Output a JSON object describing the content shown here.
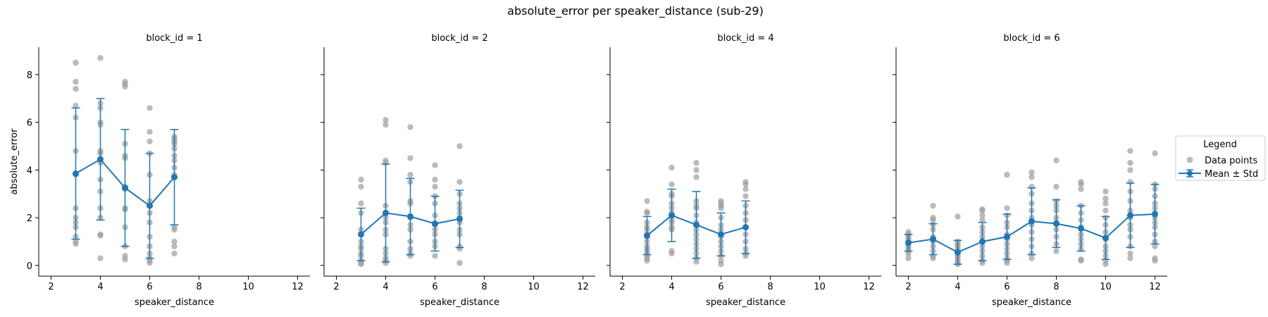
{
  "figure": {
    "title": "absolute_error per speaker_distance (sub-29)"
  },
  "legend": {
    "title": "Legend",
    "items": [
      "Data points",
      "Mean ± Std"
    ]
  },
  "colors": {
    "mean": "#1f77b4",
    "points": "#9e9e9e"
  },
  "chart_data": [
    {
      "type": "scatter",
      "title": "block_id = 1",
      "xlabel": "speaker_distance",
      "ylabel": "absolute_error",
      "xlim": [
        1.5,
        12.5
      ],
      "ylim": [
        -0.45,
        9.15
      ],
      "xticks": [
        "2",
        "4",
        "6",
        "8",
        "10",
        "12"
      ],
      "yticks": [
        "0",
        "2",
        "4",
        "6",
        "8"
      ],
      "series": [
        {
          "name": "Mean ± Std",
          "x": [
            3,
            4,
            5,
            6,
            7
          ],
          "mean": [
            3.85,
            4.45,
            3.25,
            2.5,
            3.7
          ],
          "std": [
            2.75,
            2.55,
            2.45,
            2.2,
            2.0
          ]
        }
      ],
      "points": [
        {
          "x": 3,
          "y": [
            8.5,
            7.7,
            7.4,
            6.7,
            6.2,
            4.8,
            3.8,
            2.4,
            2.0,
            1.8,
            1.6,
            1.2,
            1.0,
            0.9
          ]
        },
        {
          "x": 4,
          "y": [
            8.7,
            6.8,
            6.6,
            6.0,
            5.9,
            4.8,
            4.7,
            4.3,
            3.6,
            3.1,
            2.4,
            2.0,
            1.3,
            1.25,
            0.3
          ]
        },
        {
          "x": 5,
          "y": [
            7.7,
            7.6,
            7.5,
            5.1,
            4.6,
            4.5,
            3.3,
            3.2,
            2.4,
            2.35,
            1.6,
            0.8,
            0.4,
            0.25
          ]
        },
        {
          "x": 6,
          "y": [
            6.6,
            5.6,
            5.2,
            4.7,
            3.8,
            2.7,
            2.2,
            1.8,
            1.2,
            0.8,
            0.5,
            0.3,
            0.2,
            0.1
          ]
        },
        {
          "x": 7,
          "y": [
            5.4,
            5.3,
            5.2,
            5.1,
            4.9,
            4.6,
            4.4,
            4.1,
            3.8,
            1.6,
            1.5,
            1.0,
            0.8,
            0.5
          ]
        }
      ]
    },
    {
      "type": "scatter",
      "title": "block_id = 2",
      "xlabel": "speaker_distance",
      "ylabel": "",
      "xlim": [
        1.5,
        12.5
      ],
      "ylim": [
        -0.45,
        9.15
      ],
      "xticks": [
        "2",
        "4",
        "6",
        "8",
        "10",
        "12"
      ],
      "yticks": [],
      "series": [
        {
          "name": "Mean ± Std",
          "x": [
            3,
            4,
            5,
            6,
            7
          ],
          "mean": [
            1.3,
            2.2,
            2.05,
            1.75,
            1.95
          ],
          "std": [
            1.1,
            2.05,
            1.6,
            1.15,
            1.2
          ]
        }
      ],
      "points": [
        {
          "x": 3,
          "y": [
            3.6,
            3.3,
            2.6,
            2.2,
            1.5,
            1.3,
            1.0,
            0.8,
            0.7,
            0.5,
            0.4,
            0.2,
            0.1,
            0.05
          ]
        },
        {
          "x": 4,
          "y": [
            6.1,
            5.9,
            4.4,
            4.3,
            2.5,
            2.2,
            2.0,
            1.8,
            1.5,
            1.3,
            0.7,
            0.5,
            0.3,
            0.2,
            0.1
          ]
        },
        {
          "x": 5,
          "y": [
            5.8,
            4.5,
            3.8,
            3.5,
            2.7,
            2.6,
            2.0,
            1.7,
            1.5,
            1.0,
            0.7,
            0.5,
            0.4
          ]
        },
        {
          "x": 6,
          "y": [
            4.2,
            3.6,
            3.3,
            2.9,
            2.6,
            2.1,
            1.7,
            1.5,
            1.3,
            1.0,
            0.8,
            0.4
          ]
        },
        {
          "x": 7,
          "y": [
            5.0,
            3.5,
            3.0,
            2.6,
            2.4,
            2.2,
            2.0,
            1.8,
            1.5,
            1.3,
            0.8,
            0.7,
            0.1
          ]
        }
      ]
    },
    {
      "type": "scatter",
      "title": "block_id = 4",
      "xlabel": "speaker_distance",
      "ylabel": "",
      "xlim": [
        1.5,
        12.5
      ],
      "ylim": [
        -0.45,
        9.15
      ],
      "xticks": [
        "2",
        "4",
        "6",
        "8",
        "10",
        "12"
      ],
      "yticks": [],
      "series": [
        {
          "name": "Mean ± Std",
          "x": [
            3,
            4,
            5,
            6,
            7
          ],
          "mean": [
            1.25,
            2.1,
            1.7,
            1.3,
            1.6
          ],
          "std": [
            0.8,
            1.1,
            1.4,
            0.9,
            1.1
          ]
        }
      ],
      "points": [
        {
          "x": 3,
          "y": [
            2.7,
            2.25,
            2.2,
            1.8,
            1.6,
            1.5,
            1.3,
            1.2,
            1.0,
            0.8,
            0.7,
            0.6,
            0.5,
            0.4,
            0.3,
            0.2
          ]
        },
        {
          "x": 4,
          "y": [
            4.1,
            3.4,
            3.0,
            2.9,
            2.6,
            2.4,
            2.2,
            2.1,
            1.9,
            1.8,
            1.6,
            1.5,
            0.6,
            0.5
          ]
        },
        {
          "x": 5,
          "y": [
            4.3,
            4.0,
            3.7,
            2.7,
            2.5,
            2.4,
            2.1,
            1.8,
            1.5,
            1.3,
            1.1,
            0.9,
            0.7,
            0.5,
            0.3,
            0.15
          ]
        },
        {
          "x": 6,
          "y": [
            2.7,
            2.6,
            2.5,
            2.4,
            2.0,
            1.7,
            1.5,
            1.2,
            1.0,
            0.8,
            0.6,
            0.4,
            0.2,
            0.05
          ]
        },
        {
          "x": 7,
          "y": [
            3.5,
            3.4,
            3.2,
            2.9,
            2.5,
            2.2,
            1.9,
            1.6,
            1.3,
            1.0,
            0.7,
            0.5,
            0.4
          ]
        }
      ]
    },
    {
      "type": "scatter",
      "title": "block_id = 6",
      "xlabel": "speaker_distance",
      "ylabel": "",
      "xlim": [
        1.5,
        12.5
      ],
      "ylim": [
        -0.45,
        9.15
      ],
      "xticks": [
        "2",
        "4",
        "6",
        "8",
        "10",
        "12"
      ],
      "yticks": [],
      "series": [
        {
          "name": "Mean ± Std",
          "x": [
            2,
            3,
            4,
            5,
            6,
            7,
            8,
            9,
            10,
            11,
            12
          ],
          "mean": [
            0.95,
            1.1,
            0.55,
            1.0,
            1.2,
            1.85,
            1.75,
            1.55,
            1.15,
            2.1,
            2.15
          ],
          "std": [
            0.35,
            0.65,
            0.5,
            0.8,
            0.95,
            1.4,
            1.0,
            0.95,
            0.9,
            1.35,
            1.25
          ]
        }
      ],
      "points": [
        {
          "x": 2,
          "y": [
            1.4,
            1.3,
            1.2,
            1.1,
            1.0,
            0.9,
            0.8,
            0.7,
            0.6,
            0.5,
            0.3
          ]
        },
        {
          "x": 3,
          "y": [
            2.5,
            2.0,
            1.9,
            1.7,
            1.5,
            1.2,
            1.0,
            0.8,
            0.6,
            0.4,
            0.3
          ]
        },
        {
          "x": 4,
          "y": [
            2.05,
            1.0,
            0.9,
            0.8,
            0.7,
            0.6,
            0.5,
            0.4,
            0.3,
            0.2,
            0.1,
            0.05
          ]
        },
        {
          "x": 5,
          "y": [
            2.35,
            2.3,
            2.1,
            1.9,
            1.6,
            1.4,
            1.2,
            1.0,
            0.8,
            0.6,
            0.4,
            0.2,
            0.1
          ]
        },
        {
          "x": 6,
          "y": [
            3.8,
            2.4,
            2.1,
            1.8,
            1.6,
            1.3,
            1.1,
            0.9,
            0.7,
            0.5,
            0.3,
            0.2,
            0.1
          ]
        },
        {
          "x": 7,
          "y": [
            3.9,
            3.7,
            3.3,
            3.0,
            2.6,
            2.3,
            2.0,
            1.7,
            1.4,
            1.1,
            0.8,
            0.5,
            0.3
          ]
        },
        {
          "x": 8,
          "y": [
            4.4,
            3.3,
            2.7,
            2.5,
            2.3,
            2.0,
            1.8,
            1.5,
            1.2,
            0.9,
            0.6
          ]
        },
        {
          "x": 9,
          "y": [
            3.5,
            3.4,
            3.2,
            2.5,
            2.2,
            1.9,
            1.6,
            1.3,
            1.1,
            0.9,
            0.7,
            0.25,
            0.2
          ]
        },
        {
          "x": 10,
          "y": [
            3.1,
            2.8,
            2.6,
            2.3,
            2.0,
            1.7,
            1.4,
            1.1,
            0.8,
            0.6,
            0.4,
            0.2,
            0.05
          ]
        },
        {
          "x": 11,
          "y": [
            4.8,
            4.3,
            4.0,
            3.5,
            3.1,
            2.7,
            2.3,
            2.0,
            1.7,
            1.5,
            1.2,
            0.8,
            0.5,
            0.3
          ]
        },
        {
          "x": 12,
          "y": [
            4.7,
            3.4,
            3.2,
            2.9,
            2.6,
            2.4,
            2.2,
            2.0,
            1.8,
            1.6,
            1.3,
            1.0,
            0.8,
            0.3,
            0.2
          ]
        }
      ]
    }
  ]
}
